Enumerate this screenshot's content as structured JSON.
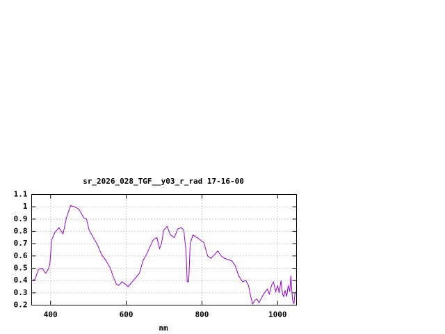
{
  "chart_data": {
    "type": "line",
    "title": "sr_2026_028_TGF__y03_r_rad 17-16-00",
    "x_label": "nm",
    "x": [
      350,
      359,
      368,
      378,
      387,
      392,
      398,
      403,
      411,
      422,
      433,
      442,
      453,
      464,
      475,
      488,
      495,
      502,
      513,
      524,
      535,
      547,
      558,
      567,
      574,
      580,
      589,
      598,
      605,
      616,
      627,
      635,
      644,
      653,
      662,
      671,
      681,
      688,
      693,
      699,
      708,
      717,
      727,
      736,
      745,
      752,
      758,
      761,
      765,
      769,
      776,
      787,
      796,
      805,
      815,
      824,
      833,
      842,
      851,
      860,
      870,
      879,
      888,
      897,
      907,
      916,
      923,
      929,
      934,
      940,
      945,
      951,
      956,
      965,
      973,
      978,
      984,
      989,
      995,
      1000,
      1004,
      1009,
      1013,
      1016,
      1020,
      1024,
      1028,
      1032,
      1035,
      1039,
      1043,
      1046,
      1050
    ],
    "values": [
      0.4,
      0.41,
      0.49,
      0.5,
      0.46,
      0.48,
      0.53,
      0.73,
      0.79,
      0.83,
      0.78,
      0.91,
      1.01,
      1.0,
      0.98,
      0.91,
      0.9,
      0.81,
      0.75,
      0.69,
      0.61,
      0.56,
      0.5,
      0.42,
      0.37,
      0.36,
      0.39,
      0.37,
      0.35,
      0.39,
      0.43,
      0.46,
      0.56,
      0.61,
      0.67,
      0.73,
      0.75,
      0.66,
      0.7,
      0.81,
      0.84,
      0.77,
      0.75,
      0.82,
      0.83,
      0.81,
      0.64,
      0.39,
      0.39,
      0.7,
      0.77,
      0.75,
      0.73,
      0.71,
      0.6,
      0.58,
      0.61,
      0.64,
      0.6,
      0.58,
      0.57,
      0.56,
      0.52,
      0.44,
      0.39,
      0.4,
      0.36,
      0.27,
      0.21,
      0.24,
      0.25,
      0.22,
      0.25,
      0.3,
      0.33,
      0.29,
      0.36,
      0.39,
      0.31,
      0.36,
      0.3,
      0.4,
      0.29,
      0.27,
      0.32,
      0.27,
      0.36,
      0.31,
      0.44,
      0.25,
      0.21,
      0.3,
      0.31
    ],
    "color": "#9400d3",
    "xlim": [
      350,
      1050
    ],
    "xticks": [
      400,
      600,
      800,
      1000
    ],
    "ylim": [
      0.2,
      1.1
    ],
    "yticks": [
      0.2,
      0.3,
      0.4,
      0.5,
      0.6,
      0.7,
      0.8,
      0.9,
      1,
      1.1
    ],
    "grid": true
  }
}
